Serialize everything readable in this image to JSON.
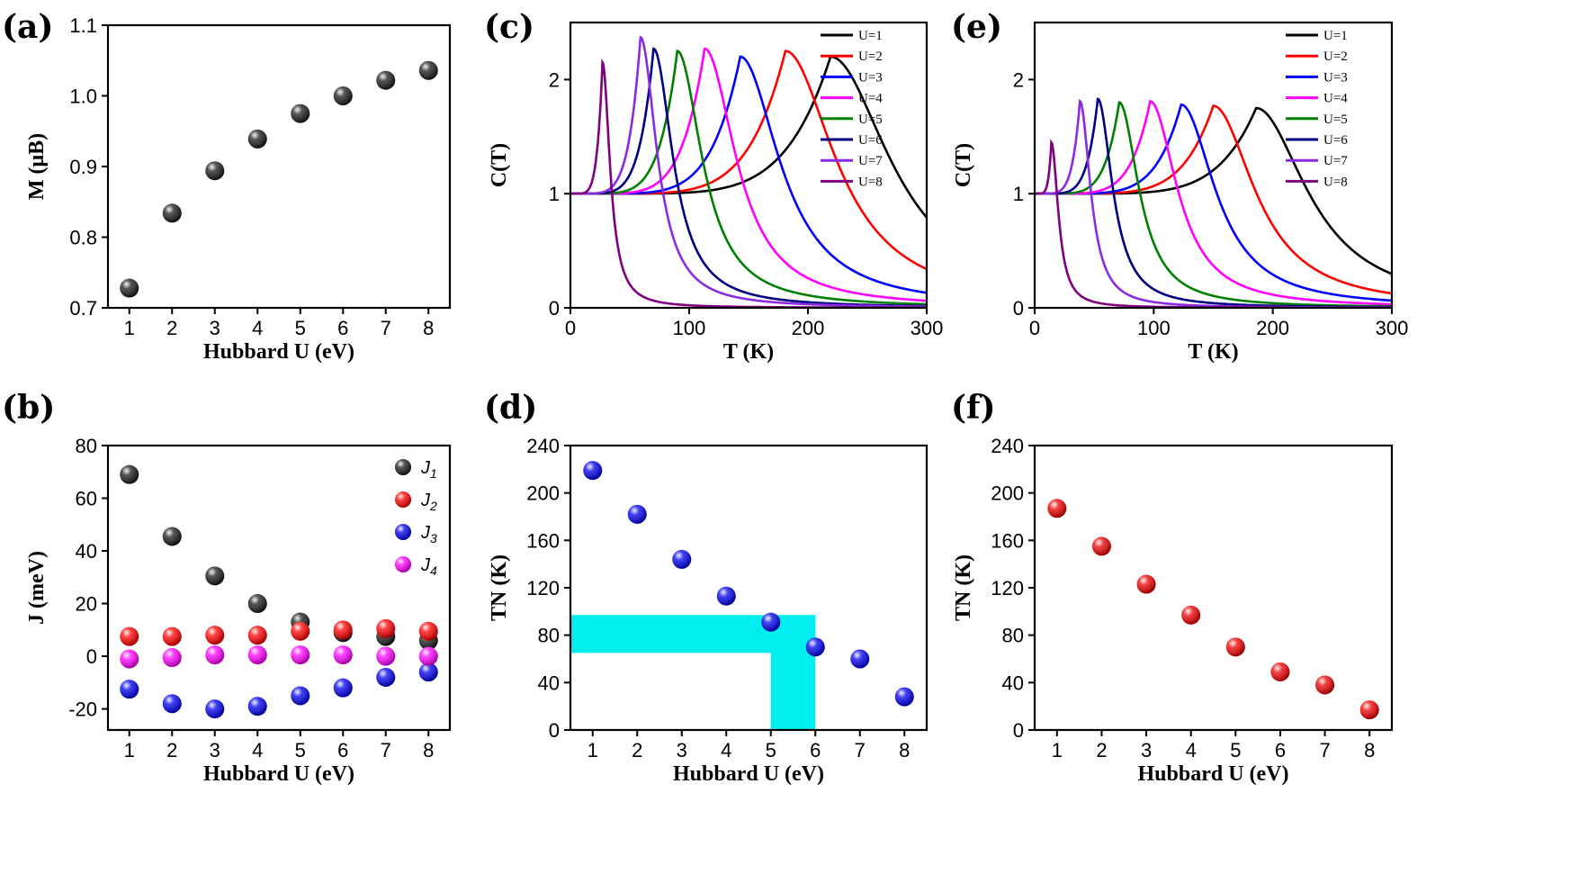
{
  "chart_data": [
    {
      "id": "a",
      "panel_label": "(a)",
      "type": "scatter",
      "xlabel": "Hubbard U (eV)",
      "ylabel": "M (μB)",
      "xlim": [
        0.5,
        8.5
      ],
      "ylim": [
        0.7,
        1.1
      ],
      "xticks": [
        1,
        2,
        3,
        4,
        5,
        6,
        7,
        8
      ],
      "yticks": [
        0.7,
        0.8,
        0.9,
        1.0,
        1.1
      ],
      "ytick_labels": [
        "0.7",
        "0.8",
        "0.9",
        "1.0",
        "1.1"
      ],
      "series": [
        {
          "name": "M",
          "color": "#1a1a1a",
          "x": [
            1,
            2,
            3,
            4,
            5,
            6,
            7,
            8
          ],
          "y": [
            0.728,
            0.834,
            0.894,
            0.939,
            0.975,
            1.0,
            1.022,
            1.036
          ]
        }
      ]
    },
    {
      "id": "b",
      "panel_label": "(b)",
      "type": "scatter",
      "xlabel": "Hubbard U (eV)",
      "ylabel": "J (meV)",
      "xlim": [
        0.5,
        8.5
      ],
      "ylim": [
        -28,
        80
      ],
      "xticks": [
        1,
        2,
        3,
        4,
        5,
        6,
        7,
        8
      ],
      "yticks": [
        -20,
        0,
        20,
        40,
        60,
        80
      ],
      "ytick_labels": [
        "-20",
        "0",
        "20",
        "40",
        "60",
        "80"
      ],
      "legend_position": "top-right",
      "series": [
        {
          "name": "J1",
          "sub": "1",
          "color": "#1a1a1a",
          "x": [
            1,
            2,
            3,
            4,
            5,
            6,
            7,
            8
          ],
          "y": [
            69,
            45.5,
            30.5,
            20,
            13,
            9,
            7.5,
            6
          ]
        },
        {
          "name": "J2",
          "sub": "2",
          "color": "#ff0000",
          "x": [
            1,
            2,
            3,
            4,
            5,
            6,
            7,
            8
          ],
          "y": [
            7.5,
            7.5,
            8,
            8,
            9.5,
            10,
            10.5,
            9.5
          ]
        },
        {
          "name": "J3",
          "sub": "3",
          "color": "#0000ee",
          "x": [
            1,
            2,
            3,
            4,
            5,
            6,
            7,
            8
          ],
          "y": [
            -12.5,
            -18,
            -20,
            -19,
            -15,
            -12,
            -8,
            -6
          ]
        },
        {
          "name": "J4",
          "sub": "4",
          "color": "#ff00ff",
          "x": [
            1,
            2,
            3,
            4,
            5,
            6,
            7,
            8
          ],
          "y": [
            -1,
            -0.5,
            0.5,
            0.5,
            0.5,
            0.5,
            0,
            0
          ]
        }
      ]
    },
    {
      "id": "c",
      "panel_label": "(c)",
      "type": "line",
      "xlabel": "T (K)",
      "ylabel": "C(T)",
      "xlim": [
        0,
        300
      ],
      "ylim": [
        0,
        2.5
      ],
      "xticks": [
        0,
        100,
        200,
        300
      ],
      "xtick_labels": [
        "0",
        "100",
        "200",
        "300"
      ],
      "yticks": [
        0,
        1,
        2
      ],
      "ytick_labels": [
        "0",
        "1",
        "2"
      ],
      "legend_position": "top-right",
      "series": [
        {
          "name": "U=1",
          "color": "#000000",
          "peak_T": 219,
          "peak_C": 2.2
        },
        {
          "name": "U=2",
          "color": "#ff0000",
          "peak_T": 181,
          "peak_C": 2.25
        },
        {
          "name": "U=3",
          "color": "#0000ff",
          "peak_T": 143,
          "peak_C": 2.2
        },
        {
          "name": "U=4",
          "color": "#ff00ff",
          "peak_T": 113,
          "peak_C": 2.27
        },
        {
          "name": "U=5",
          "color": "#008000",
          "peak_T": 90,
          "peak_C": 2.25
        },
        {
          "name": "U=6",
          "color": "#000080",
          "peak_T": 70,
          "peak_C": 2.27
        },
        {
          "name": "U=7",
          "color": "#8a2be2",
          "peak_T": 59,
          "peak_C": 2.37
        },
        {
          "name": "U=8",
          "color": "#800080",
          "peak_T": 27,
          "peak_C": 2.15
        }
      ]
    },
    {
      "id": "d",
      "panel_label": "(d)",
      "type": "scatter",
      "xlabel": "Hubbard U (eV)",
      "ylabel": "TN (K)",
      "xlim": [
        0.5,
        8.5
      ],
      "ylim": [
        0,
        240
      ],
      "xticks": [
        1,
        2,
        3,
        4,
        5,
        6,
        7,
        8
      ],
      "yticks": [
        0,
        40,
        80,
        120,
        160,
        200,
        240
      ],
      "ytick_labels": [
        "0",
        "40",
        "80",
        "120",
        "160",
        "200",
        "240"
      ],
      "highlight": {
        "color": "#00eeee",
        "T_range": [
          65,
          97
        ],
        "U_range": [
          5,
          6
        ]
      },
      "series": [
        {
          "name": "TN",
          "color": "#0000ee",
          "x": [
            1,
            2,
            3,
            4,
            5,
            6,
            7,
            8
          ],
          "y": [
            219,
            182,
            144,
            113,
            91,
            70,
            60,
            28
          ]
        }
      ]
    },
    {
      "id": "e",
      "panel_label": "(e)",
      "type": "line",
      "xlabel": "T (K)",
      "ylabel": "C(T)",
      "xlim": [
        0,
        300
      ],
      "ylim": [
        0,
        2.5
      ],
      "xticks": [
        0,
        100,
        200,
        300
      ],
      "xtick_labels": [
        "0",
        "100",
        "200",
        "300"
      ],
      "yticks": [
        0,
        1,
        2
      ],
      "ytick_labels": [
        "0",
        "1",
        "2"
      ],
      "legend_position": "top-right",
      "series": [
        {
          "name": "U=1",
          "color": "#000000",
          "peak_T": 186,
          "peak_C": 1.75
        },
        {
          "name": "U=2",
          "color": "#ff0000",
          "peak_T": 150,
          "peak_C": 1.77
        },
        {
          "name": "U=3",
          "color": "#0000ff",
          "peak_T": 123,
          "peak_C": 1.78
        },
        {
          "name": "U=4",
          "color": "#ff00ff",
          "peak_T": 97,
          "peak_C": 1.81
        },
        {
          "name": "U=5",
          "color": "#008000",
          "peak_T": 71,
          "peak_C": 1.8
        },
        {
          "name": "U=6",
          "color": "#000080",
          "peak_T": 53,
          "peak_C": 1.83
        },
        {
          "name": "U=7",
          "color": "#8a2be2",
          "peak_T": 38,
          "peak_C": 1.81
        },
        {
          "name": "U=8",
          "color": "#800080",
          "peak_T": 14,
          "peak_C": 1.45
        }
      ]
    },
    {
      "id": "f",
      "panel_label": "(f)",
      "type": "scatter",
      "xlabel": "Hubbard U (eV)",
      "ylabel": "TN (K)",
      "xlim": [
        0.5,
        8.5
      ],
      "ylim": [
        0,
        240
      ],
      "xticks": [
        1,
        2,
        3,
        4,
        5,
        6,
        7,
        8
      ],
      "yticks": [
        0,
        40,
        80,
        120,
        160,
        200,
        240
      ],
      "ytick_labels": [
        "0",
        "40",
        "80",
        "120",
        "160",
        "200",
        "240"
      ],
      "series": [
        {
          "name": "TN",
          "color": "#ee0000",
          "x": [
            1,
            2,
            3,
            4,
            5,
            6,
            7,
            8
          ],
          "y": [
            187,
            155,
            123,
            97,
            70,
            49,
            38,
            17
          ]
        }
      ]
    }
  ]
}
